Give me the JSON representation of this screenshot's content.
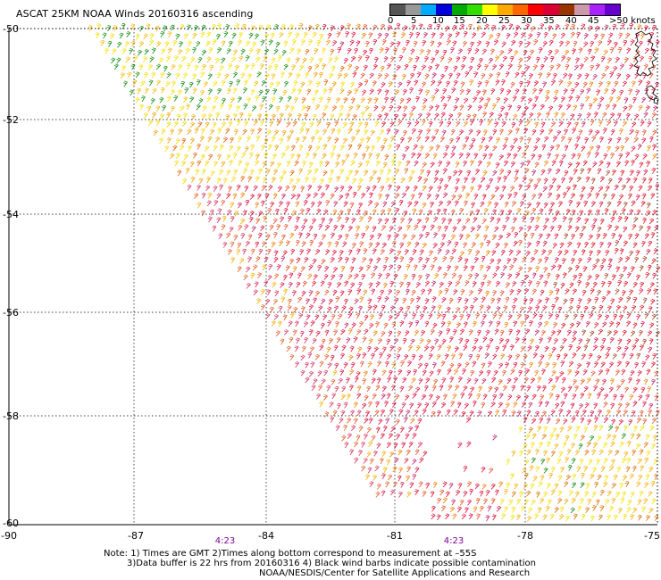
{
  "title": "ASCAT 25KM NOAA Winds 20160316 ascending",
  "colorbar": {
    "colors": [
      "#555555",
      "#999999",
      "#00aaff",
      "#0000dd",
      "#00aa00",
      "#33dd00",
      "#ffff00",
      "#ffaa00",
      "#ff6600",
      "#ff0000",
      "#dd0033",
      "#993300",
      "#cc99aa",
      "#aa22ff",
      "#6600cc"
    ],
    "labels": [
      "0",
      "5",
      "10",
      "15",
      "20",
      "25",
      "30",
      "35",
      "40",
      "45",
      ">50 knots"
    ]
  },
  "axes": {
    "x_ticks": [
      "-90",
      "-87",
      "-84",
      "-81",
      "-78",
      "-75"
    ],
    "y_ticks": [
      "-50",
      "-52",
      "-54",
      "-56",
      "-58",
      "-60"
    ]
  },
  "swath_times": [
    "4:23",
    "4:23"
  ],
  "notes": {
    "line1": "Note: 1) Times are GMT 2)Times along bottom correspond to measurement at –55S",
    "line2": "3)Data buffer is 22 hrs from 20160316 4) Black wind barbs indicate possible contamination",
    "line3": "NOAA/NESDIS/Center for Satellite Applications and Research"
  },
  "colors": {
    "gridline": "#000000",
    "land_outline": "#000000"
  }
}
